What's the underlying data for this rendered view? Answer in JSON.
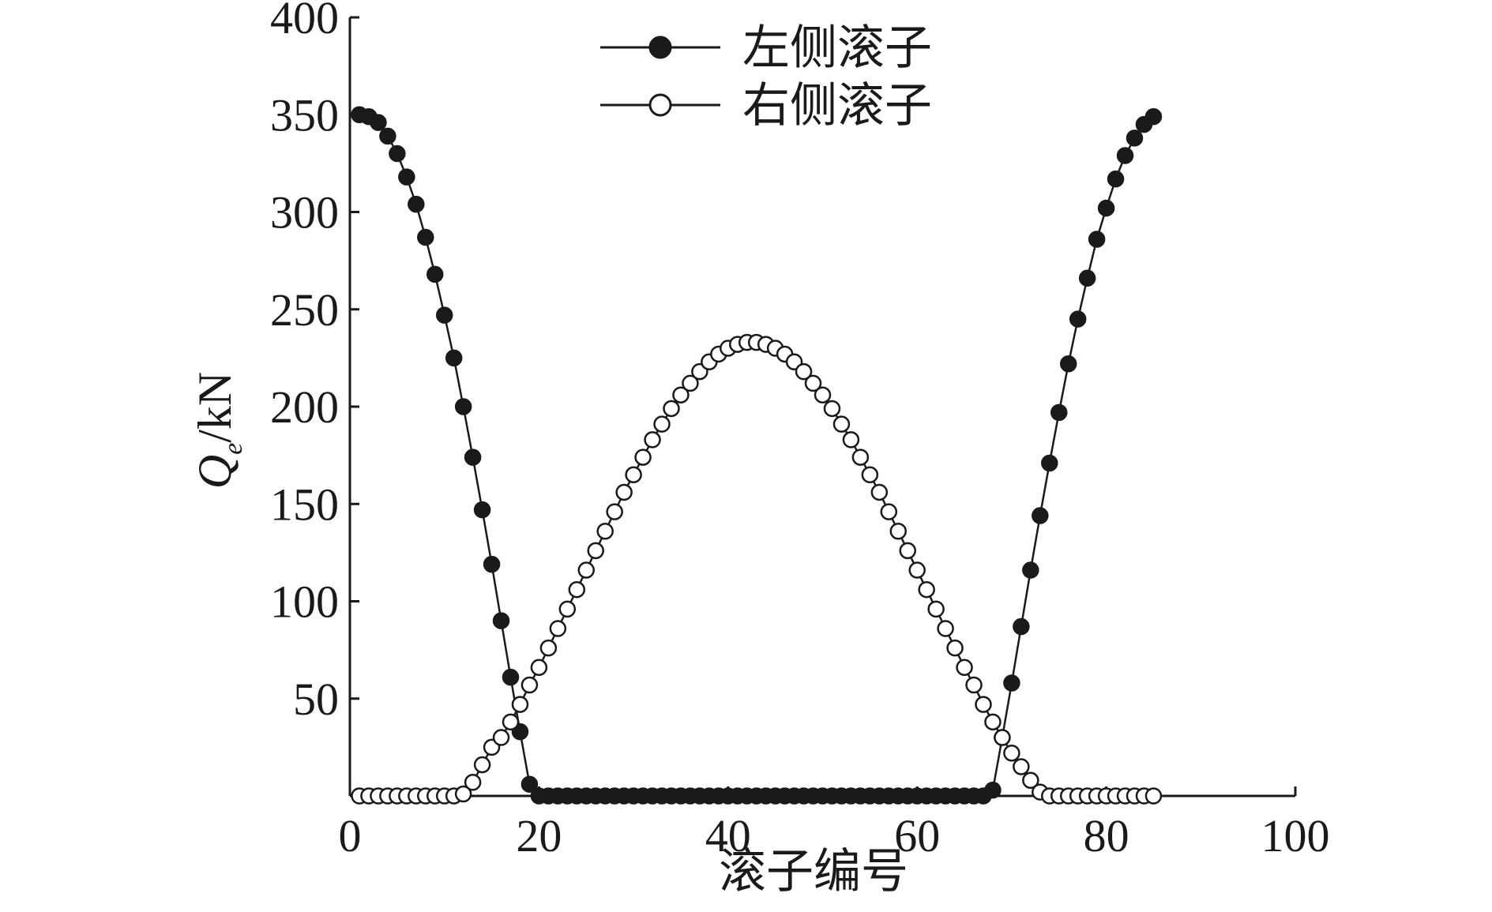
{
  "chart_data": {
    "type": "line",
    "xlabel": "滚子编号",
    "ylabel_main": "Q",
    "ylabel_sub": "e",
    "ylabel_unit": "/kN",
    "xlim": [
      0,
      100
    ],
    "ylim": [
      0,
      400
    ],
    "xticks": [
      0,
      20,
      40,
      60,
      80,
      100
    ],
    "xtick_labels": [
      "0",
      "20",
      "40",
      "60",
      "80",
      "100"
    ],
    "yticks": [
      50,
      100,
      150,
      200,
      250,
      300,
      350,
      400
    ],
    "ytick_labels": [
      "50",
      "100",
      "150",
      "200",
      "250",
      "300",
      "350",
      "400"
    ],
    "legend_position": "top-center",
    "series": [
      {
        "name": "左侧滚子",
        "marker": "filled-circle",
        "color": "#1a1a1a",
        "points": [
          [
            1,
            350
          ],
          [
            2,
            349
          ],
          [
            3,
            346
          ],
          [
            4,
            339
          ],
          [
            5,
            330
          ],
          [
            6,
            318
          ],
          [
            7,
            304
          ],
          [
            8,
            287
          ],
          [
            9,
            268
          ],
          [
            10,
            247
          ],
          [
            11,
            225
          ],
          [
            12,
            200
          ],
          [
            13,
            174
          ],
          [
            14,
            147
          ],
          [
            15,
            119
          ],
          [
            16,
            90
          ],
          [
            17,
            61
          ],
          [
            18,
            33
          ],
          [
            19,
            6
          ],
          [
            20,
            0
          ],
          [
            21,
            0
          ],
          [
            22,
            0
          ],
          [
            23,
            0
          ],
          [
            24,
            0
          ],
          [
            25,
            0
          ],
          [
            26,
            0
          ],
          [
            27,
            0
          ],
          [
            28,
            0
          ],
          [
            29,
            0
          ],
          [
            30,
            0
          ],
          [
            31,
            0
          ],
          [
            32,
            0
          ],
          [
            33,
            0
          ],
          [
            34,
            0
          ],
          [
            35,
            0
          ],
          [
            36,
            0
          ],
          [
            37,
            0
          ],
          [
            38,
            0
          ],
          [
            39,
            0
          ],
          [
            40,
            0
          ],
          [
            41,
            0
          ],
          [
            42,
            0
          ],
          [
            43,
            0
          ],
          [
            44,
            0
          ],
          [
            45,
            0
          ],
          [
            46,
            0
          ],
          [
            47,
            0
          ],
          [
            48,
            0
          ],
          [
            49,
            0
          ],
          [
            50,
            0
          ],
          [
            51,
            0
          ],
          [
            52,
            0
          ],
          [
            53,
            0
          ],
          [
            54,
            0
          ],
          [
            55,
            0
          ],
          [
            56,
            0
          ],
          [
            57,
            0
          ],
          [
            58,
            0
          ],
          [
            59,
            0
          ],
          [
            60,
            0
          ],
          [
            61,
            0
          ],
          [
            62,
            0
          ],
          [
            63,
            0
          ],
          [
            64,
            0
          ],
          [
            65,
            0
          ],
          [
            66,
            0
          ],
          [
            67,
            0
          ],
          [
            68,
            3
          ],
          [
            69,
            30
          ],
          [
            70,
            58
          ],
          [
            71,
            87
          ],
          [
            72,
            116
          ],
          [
            73,
            144
          ],
          [
            74,
            171
          ],
          [
            75,
            197
          ],
          [
            76,
            222
          ],
          [
            77,
            245
          ],
          [
            78,
            266
          ],
          [
            79,
            286
          ],
          [
            80,
            302
          ],
          [
            81,
            317
          ],
          [
            82,
            329
          ],
          [
            83,
            338
          ],
          [
            84,
            345
          ],
          [
            85,
            349
          ]
        ]
      },
      {
        "name": "右侧滚子",
        "marker": "open-circle",
        "color": "#1a1a1a",
        "points": [
          [
            1,
            0
          ],
          [
            2,
            0
          ],
          [
            3,
            0
          ],
          [
            4,
            0
          ],
          [
            5,
            0
          ],
          [
            6,
            0
          ],
          [
            7,
            0
          ],
          [
            8,
            0
          ],
          [
            9,
            0
          ],
          [
            10,
            0
          ],
          [
            11,
            0
          ],
          [
            12,
            1
          ],
          [
            13,
            7
          ],
          [
            14,
            16
          ],
          [
            15,
            25
          ],
          [
            16,
            30
          ],
          [
            17,
            38
          ],
          [
            18,
            47
          ],
          [
            19,
            57
          ],
          [
            20,
            66
          ],
          [
            21,
            76
          ],
          [
            22,
            86
          ],
          [
            23,
            96
          ],
          [
            24,
            106
          ],
          [
            25,
            116
          ],
          [
            26,
            126
          ],
          [
            27,
            136
          ],
          [
            28,
            146
          ],
          [
            29,
            156
          ],
          [
            30,
            165
          ],
          [
            31,
            174
          ],
          [
            32,
            183
          ],
          [
            33,
            191
          ],
          [
            34,
            199
          ],
          [
            35,
            206
          ],
          [
            36,
            212
          ],
          [
            37,
            218
          ],
          [
            38,
            223
          ],
          [
            39,
            227
          ],
          [
            40,
            230
          ],
          [
            41,
            232
          ],
          [
            42,
            233
          ],
          [
            43,
            233
          ],
          [
            44,
            232
          ],
          [
            45,
            230
          ],
          [
            46,
            227
          ],
          [
            47,
            223
          ],
          [
            48,
            218
          ],
          [
            49,
            212
          ],
          [
            50,
            206
          ],
          [
            51,
            199
          ],
          [
            52,
            191
          ],
          [
            53,
            183
          ],
          [
            54,
            174
          ],
          [
            55,
            165
          ],
          [
            56,
            156
          ],
          [
            57,
            146
          ],
          [
            58,
            136
          ],
          [
            59,
            126
          ],
          [
            60,
            116
          ],
          [
            61,
            106
          ],
          [
            62,
            96
          ],
          [
            63,
            86
          ],
          [
            64,
            76
          ],
          [
            65,
            66
          ],
          [
            66,
            57
          ],
          [
            67,
            47
          ],
          [
            68,
            38
          ],
          [
            69,
            30
          ],
          [
            70,
            22
          ],
          [
            71,
            15
          ],
          [
            72,
            8
          ],
          [
            73,
            2
          ],
          [
            74,
            0
          ],
          [
            75,
            0
          ],
          [
            76,
            0
          ],
          [
            77,
            0
          ],
          [
            78,
            0
          ],
          [
            79,
            0
          ],
          [
            80,
            0
          ],
          [
            81,
            0
          ],
          [
            82,
            0
          ],
          [
            83,
            0
          ],
          [
            84,
            0
          ],
          [
            85,
            0
          ]
        ]
      }
    ]
  }
}
